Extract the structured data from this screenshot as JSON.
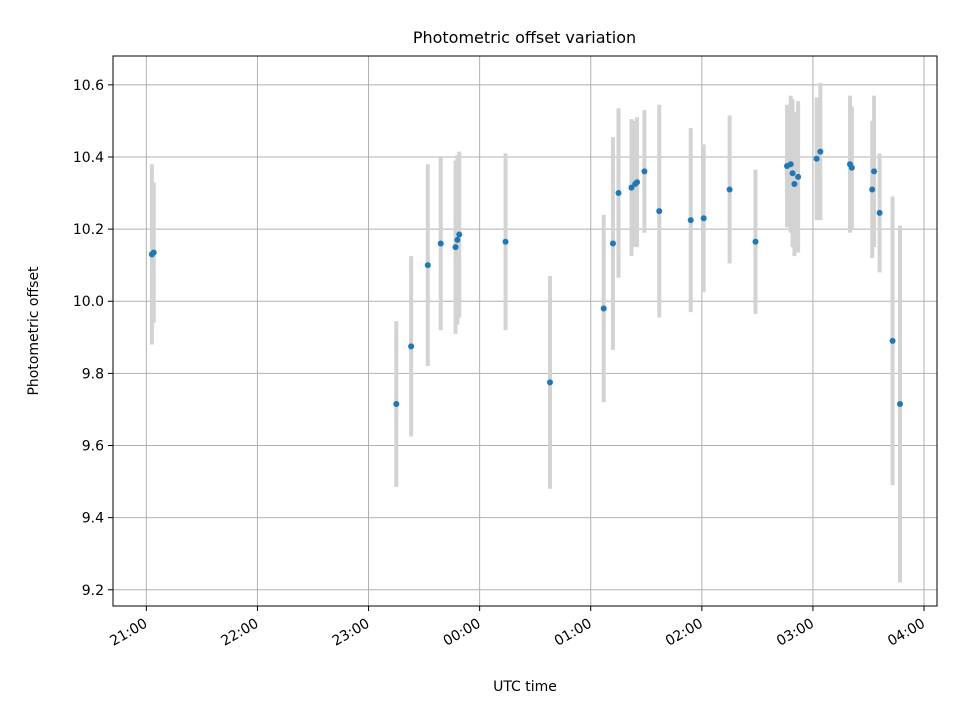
{
  "chart_data": {
    "type": "scatter",
    "title": "Photometric offset variation",
    "xlabel": "UTC time",
    "ylabel": "Photometric offset",
    "x_is_time": true,
    "xlim": [
      "20:42",
      "04:07"
    ],
    "ylim": [
      9.155,
      10.68
    ],
    "xticks": [
      "21:00",
      "22:00",
      "23:00",
      "00:00",
      "01:00",
      "02:00",
      "03:00",
      "04:00"
    ],
    "yticks": [
      "9.2",
      "9.4",
      "9.6",
      "9.8",
      "10.0",
      "10.2",
      "10.4",
      "10.6"
    ],
    "grid": true,
    "colors": {
      "points": "#1f77b4",
      "errorbars": "#d3d3d3",
      "grid": "#b0b0b0"
    },
    "points": [
      {
        "t": "21:03",
        "y": 10.13,
        "err": 0.25
      },
      {
        "t": "21:04",
        "y": 10.135,
        "err": 0.195
      },
      {
        "t": "23:15",
        "y": 9.715,
        "err": 0.23
      },
      {
        "t": "23:23",
        "y": 9.875,
        "err": 0.25
      },
      {
        "t": "23:32",
        "y": 10.1,
        "err": 0.28
      },
      {
        "t": "23:39",
        "y": 10.16,
        "err": 0.24
      },
      {
        "t": "23:47",
        "y": 10.15,
        "err": 0.24
      },
      {
        "t": "23:48",
        "y": 10.17,
        "err": 0.235
      },
      {
        "t": "23:49",
        "y": 10.185,
        "err": 0.23
      },
      {
        "t": "00:14",
        "y": 10.165,
        "err": 0.245
      },
      {
        "t": "00:38",
        "y": 9.775,
        "err": 0.295
      },
      {
        "t": "01:07",
        "y": 9.98,
        "err": 0.26
      },
      {
        "t": "01:12",
        "y": 10.16,
        "err": 0.295
      },
      {
        "t": "01:15",
        "y": 10.3,
        "err": 0.235
      },
      {
        "t": "01:22",
        "y": 10.315,
        "err": 0.19
      },
      {
        "t": "01:24",
        "y": 10.325,
        "err": 0.175
      },
      {
        "t": "01:25",
        "y": 10.33,
        "err": 0.18
      },
      {
        "t": "01:29",
        "y": 10.36,
        "err": 0.17
      },
      {
        "t": "01:37",
        "y": 10.25,
        "err": 0.295
      },
      {
        "t": "01:54",
        "y": 10.225,
        "err": 0.255
      },
      {
        "t": "02:01",
        "y": 10.23,
        "err": 0.205
      },
      {
        "t": "02:15",
        "y": 10.31,
        "err": 0.205
      },
      {
        "t": "02:29",
        "y": 10.165,
        "err": 0.2
      },
      {
        "t": "02:46",
        "y": 10.375,
        "err": 0.17
      },
      {
        "t": "02:48",
        "y": 10.38,
        "err": 0.19
      },
      {
        "t": "02:49",
        "y": 10.355,
        "err": 0.205
      },
      {
        "t": "02:50",
        "y": 10.325,
        "err": 0.2
      },
      {
        "t": "02:52",
        "y": 10.345,
        "err": 0.21
      },
      {
        "t": "03:02",
        "y": 10.395,
        "err": 0.17
      },
      {
        "t": "03:04",
        "y": 10.415,
        "err": 0.19
      },
      {
        "t": "03:20",
        "y": 10.38,
        "err": 0.19
      },
      {
        "t": "03:21",
        "y": 10.37,
        "err": 0.17
      },
      {
        "t": "03:32",
        "y": 10.31,
        "err": 0.19
      },
      {
        "t": "03:33",
        "y": 10.36,
        "err": 0.21
      },
      {
        "t": "03:36",
        "y": 10.245,
        "err": 0.165
      },
      {
        "t": "03:43",
        "y": 9.89,
        "err": 0.4
      },
      {
        "t": "03:47",
        "y": 9.715,
        "err": 0.495
      }
    ]
  }
}
